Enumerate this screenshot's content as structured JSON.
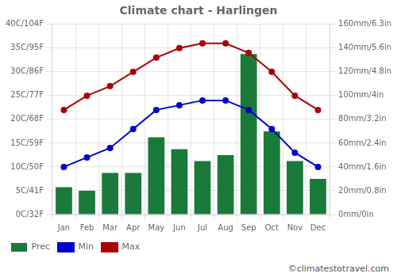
{
  "chart_data": {
    "type": "bar",
    "title": "Climate chart - Harlingen",
    "categories": [
      "Jan",
      "Feb",
      "Mar",
      "Apr",
      "May",
      "Jun",
      "Jul",
      "Aug",
      "Sep",
      "Oct",
      "Nov",
      "Dec"
    ],
    "series": [
      {
        "name": "Prec",
        "type": "bar",
        "axis": "y2",
        "color": "#1a7a3a",
        "values": [
          23,
          20,
          35,
          35,
          65,
          55,
          45,
          50,
          135,
          70,
          45,
          30
        ]
      },
      {
        "name": "Min",
        "type": "line",
        "color": "#0000cc",
        "marker": "circle",
        "line_style": "solid",
        "values": [
          10,
          12,
          14,
          18,
          22,
          23,
          24,
          24,
          22,
          18,
          13,
          10
        ]
      },
      {
        "name": "Max",
        "type": "line",
        "color": "#aa0000",
        "marker": "circle",
        "line_style": "solid",
        "values": [
          22,
          25,
          27,
          30,
          33,
          35,
          36,
          36,
          34,
          30,
          25,
          22
        ]
      }
    ],
    "ylim": [
      0,
      40
    ],
    "yticks": [
      {
        "value": 0,
        "label": "0C/32F"
      },
      {
        "value": 5,
        "label": "5C/41F"
      },
      {
        "value": 10,
        "label": "10C/50F"
      },
      {
        "value": 15,
        "label": "15C/59F"
      },
      {
        "value": 20,
        "label": "20C/68F"
      },
      {
        "value": 25,
        "label": "25C/77F"
      },
      {
        "value": 30,
        "label": "30C/86F"
      },
      {
        "value": 35,
        "label": "35C/95F"
      },
      {
        "value": 40,
        "label": "40C/104F"
      }
    ],
    "y2lim": [
      0,
      160
    ],
    "y2ticks": [
      {
        "value": 0,
        "label": "0mm/0in"
      },
      {
        "value": 20,
        "label": "20mm/0.8in"
      },
      {
        "value": 40,
        "label": "40mm/1.6in"
      },
      {
        "value": 60,
        "label": "60mm/2.4in"
      },
      {
        "value": 80,
        "label": "80mm/3.2in"
      },
      {
        "value": 100,
        "label": "100mm/4in"
      },
      {
        "value": 120,
        "label": "120mm/4.8in"
      },
      {
        "value": 140,
        "label": "140mm/5.6in"
      },
      {
        "value": 160,
        "label": "160mm/6.3in"
      }
    ],
    "grid": true,
    "legend": "bottom",
    "annotations": [
      {
        "text": "©climatestotravel.com"
      }
    ]
  }
}
